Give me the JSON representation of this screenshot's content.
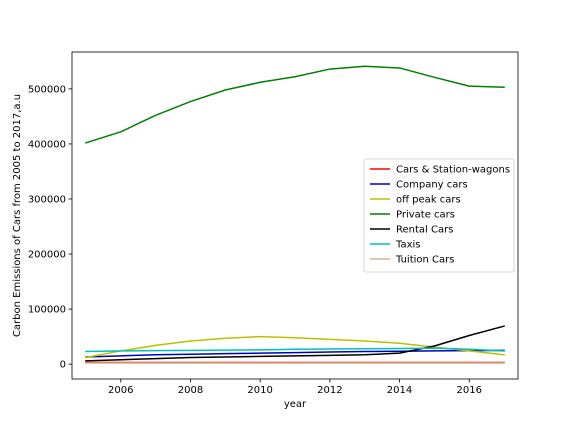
{
  "chart_data": {
    "type": "line",
    "xlabel": "year",
    "ylabel": "Carbon Emissions of Cars from 2005 to 2017,a.u",
    "xlim": [
      2004.6,
      2017.4
    ],
    "ylim": [
      -27000,
      567000
    ],
    "xticks": [
      2006,
      2008,
      2010,
      2012,
      2014,
      2016
    ],
    "xtick_labels": [
      "2006",
      "2008",
      "2010",
      "2012",
      "2014",
      "2016"
    ],
    "yticks": [
      0,
      100000,
      200000,
      300000,
      400000,
      500000
    ],
    "ytick_labels": [
      "0",
      "100000",
      "200000",
      "300000",
      "400000",
      "500000"
    ],
    "grid": false,
    "legend_position": "center-right",
    "x": [
      2005,
      2006,
      2007,
      2008,
      2009,
      2010,
      2011,
      2012,
      2013,
      2014,
      2015,
      2016,
      2017
    ],
    "series": [
      {
        "name": "Cars & Station-wagons",
        "color": "#ff0000",
        "values": [
          3000,
          3000,
          3000,
          3000,
          3000,
          3000,
          3000,
          3000,
          3000,
          3000,
          3000,
          3000,
          3000
        ]
      },
      {
        "name": "Company cars",
        "color": "#0000bf",
        "values": [
          13000,
          15000,
          17000,
          18000,
          19000,
          20000,
          21000,
          22000,
          23000,
          23500,
          24000,
          24500,
          25000
        ]
      },
      {
        "name": "off peak cars",
        "color": "#bfbf00",
        "values": [
          12000,
          24000,
          34000,
          42000,
          47000,
          50000,
          48000,
          45000,
          42000,
          38000,
          31000,
          24000,
          17000
        ]
      },
      {
        "name": "Private cars",
        "color": "#008000",
        "values": [
          402000,
          422000,
          452000,
          477000,
          498000,
          512000,
          522000,
          536000,
          541000,
          538000,
          521000,
          505000,
          503000
        ]
      },
      {
        "name": "Rental Cars",
        "color": "#000000",
        "values": [
          6000,
          8000,
          10000,
          12000,
          13000,
          14000,
          15000,
          16000,
          17000,
          20000,
          33000,
          52000,
          69000
        ]
      },
      {
        "name": "Taxis",
        "color": "#00bfbf",
        "values": [
          23000,
          24000,
          24500,
          25000,
          25500,
          26000,
          27000,
          27500,
          28000,
          28500,
          29000,
          27000,
          24000
        ]
      },
      {
        "name": "Tuition Cars",
        "color": "#d2b48c",
        "values": [
          2000,
          2000,
          2000,
          2000,
          2000,
          2000,
          2000,
          2000,
          2000,
          2000,
          2000,
          2000,
          2000
        ]
      }
    ]
  }
}
